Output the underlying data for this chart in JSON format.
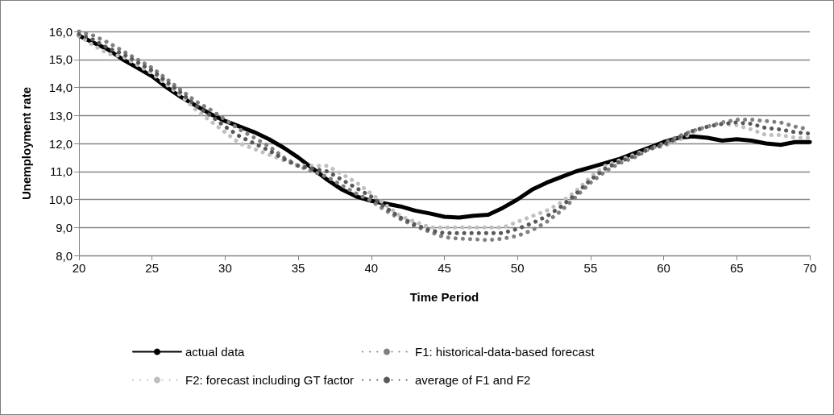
{
  "chart_data": {
    "type": "line",
    "xlabel": "Time Period",
    "ylabel": "Unemployment rate",
    "x": [
      20,
      21,
      22,
      23,
      24,
      25,
      26,
      27,
      28,
      29,
      30,
      31,
      32,
      33,
      34,
      35,
      36,
      37,
      38,
      39,
      40,
      41,
      42,
      43,
      44,
      45,
      46,
      47,
      48,
      49,
      50,
      51,
      52,
      53,
      54,
      55,
      56,
      57,
      58,
      59,
      60,
      61,
      62,
      63,
      64,
      65,
      66,
      67,
      68,
      69,
      70
    ],
    "series": [
      {
        "name": "actual data",
        "color": "#000000",
        "line_style": "solid",
        "values": [
          15.85,
          15.6,
          15.35,
          15.0,
          14.7,
          14.4,
          14.0,
          13.65,
          13.35,
          13.05,
          12.8,
          12.6,
          12.4,
          12.15,
          11.85,
          11.5,
          11.1,
          10.7,
          10.35,
          10.1,
          9.95,
          9.85,
          9.75,
          9.6,
          9.5,
          9.38,
          9.35,
          9.42,
          9.45,
          9.7,
          10.0,
          10.35,
          10.6,
          10.8,
          11.0,
          11.15,
          11.3,
          11.45,
          11.65,
          11.85,
          12.05,
          12.2,
          12.25,
          12.2,
          12.1,
          12.15,
          12.1,
          12.0,
          11.95,
          12.05,
          12.05
        ]
      },
      {
        "name": "F1: historical-data-based forecast",
        "color": "#808080",
        "line_style": "dotted",
        "values": [
          16.0,
          15.85,
          15.6,
          15.3,
          15.0,
          14.7,
          14.3,
          13.9,
          13.5,
          13.2,
          12.85,
          12.5,
          12.2,
          11.9,
          11.5,
          11.2,
          11.0,
          10.8,
          10.5,
          10.2,
          9.95,
          9.6,
          9.3,
          9.05,
          8.85,
          8.65,
          8.6,
          8.58,
          8.55,
          8.6,
          8.7,
          8.9,
          9.2,
          9.6,
          10.1,
          10.6,
          11.0,
          11.3,
          11.5,
          11.8,
          12.0,
          12.25,
          12.45,
          12.6,
          12.75,
          12.85,
          12.85,
          12.8,
          12.75,
          12.6,
          12.5
        ]
      },
      {
        "name": "F2: forecast including GT factor",
        "color": "#bfbfbf",
        "line_style": "dotted",
        "values": [
          15.85,
          15.5,
          15.2,
          15.1,
          14.8,
          14.5,
          14.1,
          13.7,
          13.2,
          12.8,
          12.4,
          12.0,
          11.8,
          11.6,
          11.4,
          11.2,
          11.2,
          11.2,
          10.9,
          10.6,
          10.2,
          9.8,
          9.4,
          9.2,
          9.0,
          9.0,
          9.0,
          9.0,
          9.0,
          9.0,
          9.2,
          9.4,
          9.6,
          9.9,
          10.3,
          10.8,
          11.2,
          11.4,
          11.6,
          11.8,
          11.9,
          12.1,
          12.4,
          12.6,
          12.7,
          12.65,
          12.5,
          12.3,
          12.3,
          12.2,
          12.2
        ]
      },
      {
        "name": "average of F1 and F2",
        "color": "#595959",
        "line_style": "dotted",
        "values": [
          15.9,
          15.7,
          15.4,
          15.2,
          14.9,
          14.6,
          14.2,
          13.8,
          13.35,
          13.0,
          12.6,
          12.25,
          12.0,
          11.75,
          11.45,
          11.2,
          11.1,
          11.0,
          10.7,
          10.4,
          10.1,
          9.7,
          9.35,
          9.1,
          8.9,
          8.8,
          8.8,
          8.8,
          8.8,
          8.8,
          8.95,
          9.15,
          9.4,
          9.75,
          10.2,
          10.7,
          11.1,
          11.35,
          11.55,
          11.8,
          11.95,
          12.2,
          12.45,
          12.6,
          12.7,
          12.75,
          12.7,
          12.55,
          12.5,
          12.4,
          12.35
        ]
      }
    ],
    "xlim": [
      20,
      70
    ],
    "xticks": [
      20,
      25,
      30,
      35,
      40,
      45,
      50,
      55,
      60,
      65,
      70
    ],
    "ylim": [
      8,
      16
    ],
    "yticks": [
      {
        "value": 8,
        "label": "8,0"
      },
      {
        "value": 9,
        "label": "9,0"
      },
      {
        "value": 10,
        "label": "10,0"
      },
      {
        "value": 11,
        "label": "11,0"
      },
      {
        "value": 12,
        "label": "12,0"
      },
      {
        "value": 13,
        "label": "13,0"
      },
      {
        "value": 14,
        "label": "14,0"
      },
      {
        "value": 15,
        "label": "15,0"
      },
      {
        "value": 16,
        "label": "16,0"
      }
    ],
    "grid": "y",
    "legend": "bottom",
    "marker": "none"
  }
}
